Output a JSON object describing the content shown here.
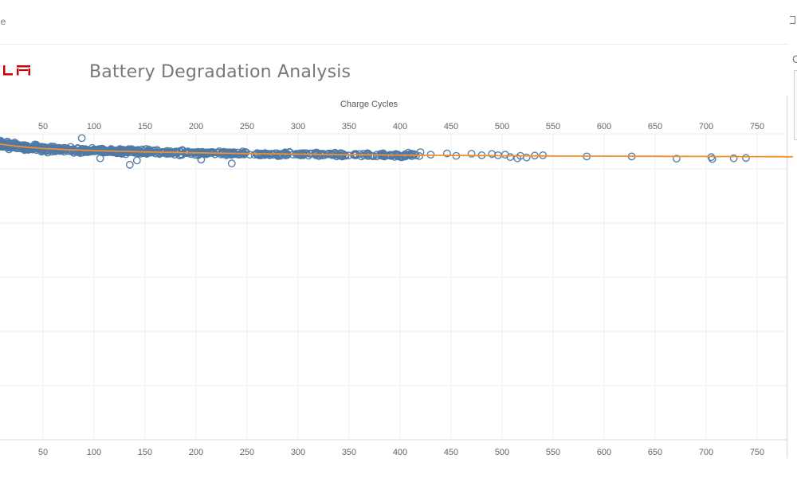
{
  "top_tab": {
    "label": "le"
  },
  "header": {
    "logo_icon": "tesla-wordmark-logo",
    "logo_text": "TESLA",
    "title": "Battery Degradation Analysis",
    "brand_color": "#cc0000"
  },
  "right_panel": {
    "letter": "C"
  },
  "chart_data": {
    "type": "scatter",
    "title": "Battery Degradation Analysis",
    "xlabel": "Charge Cycles",
    "ylabel": "",
    "xlim": [
      -5,
      785
    ],
    "ylim": [
      0,
      100
    ],
    "x_ticks": [
      50,
      100,
      150,
      200,
      250,
      300,
      350,
      400,
      450,
      500,
      550,
      600,
      650,
      700,
      750
    ],
    "x_axis_position": "top and bottom",
    "grid": true,
    "marker": "hollow-circle",
    "point_color": "#4e79a7",
    "trend_color": "#f28e2b",
    "trend_line": {
      "x": [
        0,
        25,
        50,
        75,
        100,
        150,
        200,
        250,
        300,
        350,
        400,
        450,
        500,
        550,
        600,
        650,
        700,
        750,
        785
      ],
      "y": [
        97.0,
        95.9,
        95.2,
        94.8,
        94.5,
        94.1,
        93.8,
        93.55,
        93.35,
        93.2,
        93.05,
        92.95,
        92.85,
        92.75,
        92.7,
        92.65,
        92.6,
        92.55,
        92.5
      ]
    },
    "sparse_points": [
      {
        "x": 135,
        "y": 89.9
      },
      {
        "x": 142,
        "y": 91.3
      },
      {
        "x": 235,
        "y": 90.3
      },
      {
        "x": 205,
        "y": 91.6
      },
      {
        "x": 88,
        "y": 98.6
      },
      {
        "x": 106,
        "y": 92.0
      },
      {
        "x": 420,
        "y": 94.0
      },
      {
        "x": 430,
        "y": 93.2
      },
      {
        "x": 446,
        "y": 93.6
      },
      {
        "x": 455,
        "y": 92.8
      },
      {
        "x": 470,
        "y": 93.5
      },
      {
        "x": 480,
        "y": 93.0
      },
      {
        "x": 490,
        "y": 93.4
      },
      {
        "x": 496,
        "y": 93.0
      },
      {
        "x": 503,
        "y": 93.2
      },
      {
        "x": 508,
        "y": 92.4
      },
      {
        "x": 515,
        "y": 92.0
      },
      {
        "x": 518,
        "y": 92.8
      },
      {
        "x": 524,
        "y": 92.3
      },
      {
        "x": 532,
        "y": 92.9
      },
      {
        "x": 540,
        "y": 93.0
      },
      {
        "x": 583,
        "y": 92.6
      },
      {
        "x": 627,
        "y": 92.6
      },
      {
        "x": 671,
        "y": 91.9
      },
      {
        "x": 705,
        "y": 92.4
      },
      {
        "x": 706,
        "y": 91.8
      },
      {
        "x": 727,
        "y": 92.0
      },
      {
        "x": 739,
        "y": 92.1
      }
    ],
    "dense_cluster": {
      "count": 760,
      "note_values": "cycles 0-420, capacity roughly 91.5-97.5, following trend"
    }
  }
}
